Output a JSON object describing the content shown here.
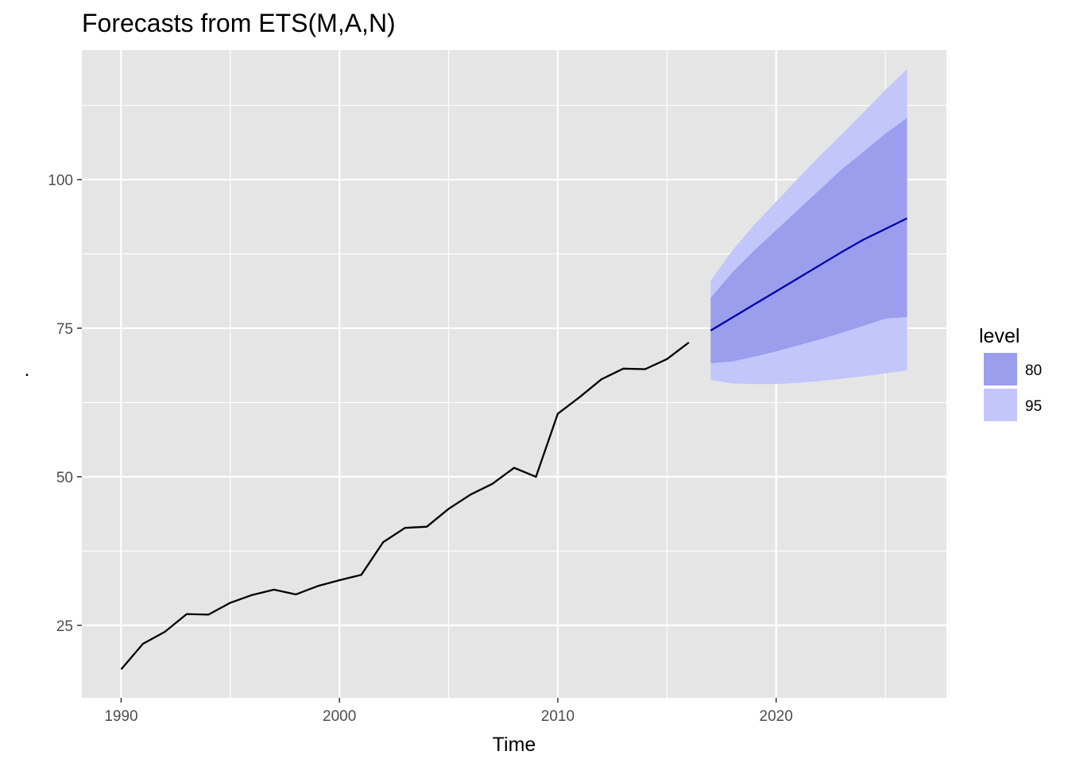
{
  "chart_data": {
    "type": "line",
    "title": "Forecasts from ETS(M,A,N)",
    "xlabel": "Time",
    "ylabel": ".",
    "xlim": [
      1988.2,
      2027.8
    ],
    "ylim": [
      12.8,
      121.8
    ],
    "x_ticks": [
      1990,
      2000,
      2010,
      2020
    ],
    "x_tick_labels": [
      "1990",
      "2000",
      "2010",
      "2020"
    ],
    "y_ticks": [
      25,
      50,
      75,
      100
    ],
    "y_tick_labels": [
      "25",
      "50",
      "75",
      "100"
    ],
    "x_minor": [
      1995,
      2005,
      2015,
      2025
    ],
    "y_minor": [
      37.5,
      62.5,
      87.5,
      112.5
    ],
    "grid": true,
    "colors": {
      "panel": "#e5e5e5",
      "grid": "#ffffff",
      "observed": "#000000",
      "forecast": "#0000aa",
      "band80": "#9a9eec",
      "band95": "#c3c6fb"
    },
    "observed": {
      "x": [
        1990,
        1991,
        1992,
        1993,
        1994,
        1995,
        1996,
        1997,
        1998,
        1999,
        2000,
        2001,
        2002,
        2003,
        2004,
        2005,
        2006,
        2007,
        2008,
        2009,
        2010,
        2011,
        2012,
        2013,
        2014,
        2015,
        2016
      ],
      "y": [
        17.6,
        21.9,
        23.9,
        26.9,
        26.8,
        28.8,
        30.1,
        31.0,
        30.2,
        31.6,
        32.6,
        33.5,
        39.0,
        41.4,
        41.6,
        44.6,
        47.0,
        48.8,
        51.5,
        50.0,
        60.6,
        63.4,
        66.4,
        68.2,
        68.1,
        69.8,
        72.6
      ]
    },
    "forecast": {
      "x": [
        2017,
        2018,
        2019,
        2020,
        2021,
        2022,
        2023,
        2024,
        2025,
        2026
      ],
      "mean": [
        74.6,
        76.8,
        79.0,
        81.2,
        83.4,
        85.6,
        87.8,
        89.9,
        91.7,
        93.5
      ],
      "lo80": [
        69.1,
        69.4,
        70.2,
        71.1,
        72.1,
        73.1,
        74.2,
        75.4,
        76.6,
        76.9
      ],
      "hi80": [
        80.1,
        84.4,
        88.1,
        91.5,
        94.9,
        98.3,
        101.7,
        104.7,
        107.7,
        110.4
      ],
      "lo95": [
        66.3,
        65.7,
        65.6,
        65.6,
        65.8,
        66.1,
        66.5,
        66.9,
        67.4,
        67.9
      ],
      "hi95": [
        83.0,
        88.1,
        92.4,
        96.3,
        100.2,
        104.0,
        107.6,
        111.3,
        115.1,
        118.6
      ]
    },
    "legend": {
      "title": "level",
      "position": "right",
      "entries": [
        {
          "label": "80",
          "color": "#9a9eec"
        },
        {
          "label": "95",
          "color": "#c3c6fb"
        }
      ]
    }
  }
}
